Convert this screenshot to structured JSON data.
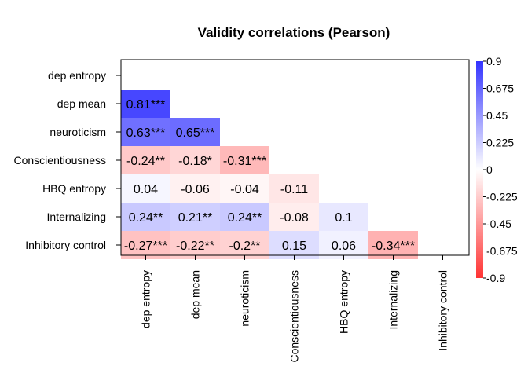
{
  "chart_data": {
    "type": "heatmap",
    "title": "Validity correlations (Pearson)",
    "xlabel": "",
    "ylabel": "",
    "variables": [
      "dep entropy",
      "dep mean",
      "neuroticism",
      "Conscientiousness",
      "HBQ entropy",
      "Internalizing",
      "Inhibitory control"
    ],
    "cells": [
      {
        "row": "dep mean",
        "col": "dep entropy",
        "value": 0.81,
        "label": "0.81***"
      },
      {
        "row": "neuroticism",
        "col": "dep entropy",
        "value": 0.63,
        "label": "0.63***"
      },
      {
        "row": "neuroticism",
        "col": "dep mean",
        "value": 0.65,
        "label": "0.65***"
      },
      {
        "row": "Conscientiousness",
        "col": "dep entropy",
        "value": -0.24,
        "label": "-0.24**"
      },
      {
        "row": "Conscientiousness",
        "col": "dep mean",
        "value": -0.18,
        "label": "-0.18*"
      },
      {
        "row": "Conscientiousness",
        "col": "neuroticism",
        "value": -0.31,
        "label": "-0.31***"
      },
      {
        "row": "HBQ entropy",
        "col": "dep entropy",
        "value": 0.04,
        "label": "0.04"
      },
      {
        "row": "HBQ entropy",
        "col": "dep mean",
        "value": -0.06,
        "label": "-0.06"
      },
      {
        "row": "HBQ entropy",
        "col": "neuroticism",
        "value": -0.04,
        "label": "-0.04"
      },
      {
        "row": "HBQ entropy",
        "col": "Conscientiousness",
        "value": -0.11,
        "label": "-0.11"
      },
      {
        "row": "Internalizing",
        "col": "dep entropy",
        "value": 0.24,
        "label": "0.24**"
      },
      {
        "row": "Internalizing",
        "col": "dep mean",
        "value": 0.21,
        "label": "0.21**"
      },
      {
        "row": "Internalizing",
        "col": "neuroticism",
        "value": 0.24,
        "label": "0.24**"
      },
      {
        "row": "Internalizing",
        "col": "Conscientiousness",
        "value": -0.08,
        "label": "-0.08"
      },
      {
        "row": "Internalizing",
        "col": "HBQ entropy",
        "value": 0.1,
        "label": "0.1"
      },
      {
        "row": "Inhibitory control",
        "col": "dep entropy",
        "value": -0.27,
        "label": "-0.27***"
      },
      {
        "row": "Inhibitory control",
        "col": "dep mean",
        "value": -0.22,
        "label": "-0.22**"
      },
      {
        "row": "Inhibitory control",
        "col": "neuroticism",
        "value": -0.2,
        "label": "-0.2**"
      },
      {
        "row": "Inhibitory control",
        "col": "Conscientiousness",
        "value": 0.15,
        "label": "0.15"
      },
      {
        "row": "Inhibitory control",
        "col": "HBQ entropy",
        "value": 0.06,
        "label": "0.06"
      },
      {
        "row": "Inhibitory control",
        "col": "Internalizing",
        "value": -0.34,
        "label": "-0.34***"
      }
    ],
    "color_scale": {
      "min": -0.9,
      "max": 0.9,
      "low_color": "#ff3333",
      "mid_color": "#ffffff",
      "high_color": "#3333ff",
      "ticks": [
        0.9,
        0.675,
        0.45,
        0.225,
        0,
        -0.225,
        -0.45,
        -0.675,
        -0.9
      ],
      "tick_labels": [
        "0.9",
        "0.675",
        "0.45",
        "0.225",
        "0",
        "-0.225",
        "-0.45",
        "-0.675",
        "-0.9"
      ]
    },
    "legend_placement": "right",
    "grid": false
  }
}
